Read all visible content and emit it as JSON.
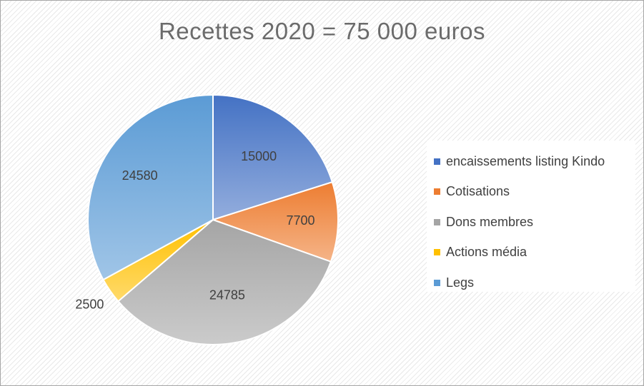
{
  "chart_data": {
    "type": "pie",
    "title": "Recettes 2020 = 75 000 euros",
    "categories": [
      "encaissements listing Kindo",
      "Cotisations",
      "Dons membres",
      "Actions média",
      "Legs"
    ],
    "values": [
      15000,
      7700,
      24785,
      2500,
      24580
    ],
    "data_labels": [
      "15000",
      "7700",
      "24785",
      "2500",
      "24580"
    ],
    "colors": [
      "#4472c4",
      "#ed7d31",
      "#a5a5a5",
      "#ffc000",
      "#5b9bd5"
    ],
    "legend": {
      "placement": "right",
      "entries": [
        "encaissements listing Kindo",
        "Cotisations",
        "Dons membres",
        "Actions média",
        "Legs"
      ]
    }
  }
}
